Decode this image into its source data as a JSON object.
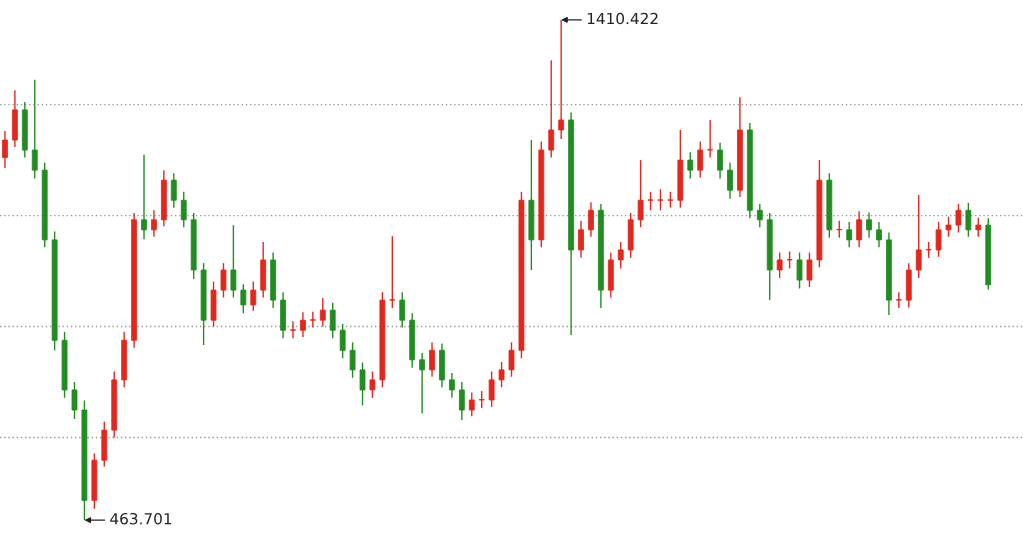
{
  "chart_data": {
    "type": "candlestick",
    "categories": [
      null,
      null,
      null,
      null,
      null,
      null,
      null,
      null,
      null,
      null,
      null,
      null,
      null,
      null,
      null,
      null,
      null,
      null,
      null,
      null,
      null,
      null,
      null,
      null,
      null,
      null,
      null,
      null,
      null,
      null,
      null,
      null,
      null,
      null,
      null,
      null,
      null,
      null,
      null,
      null,
      null,
      null,
      null,
      null,
      null,
      null,
      null,
      null,
      null,
      null,
      null,
      null,
      null,
      null,
      null,
      null,
      null,
      null,
      null,
      null,
      null,
      null,
      null,
      null,
      null,
      null,
      null,
      null,
      null,
      null,
      null,
      null,
      null,
      null,
      null,
      null,
      null,
      null,
      null,
      null,
      null,
      null,
      null,
      null,
      null,
      null,
      null,
      null,
      null,
      null,
      null,
      null,
      null,
      null,
      null,
      null,
      null,
      null,
      null,
      null
    ],
    "ohlc": [
      [
        1150,
        1200,
        1130,
        1183
      ],
      [
        1183,
        1277,
        1170,
        1240
      ],
      [
        1240,
        1255,
        1150,
        1164
      ],
      [
        1164,
        1297,
        1110,
        1126
      ],
      [
        1126,
        1140,
        980,
        994
      ],
      [
        994,
        1010,
        785,
        804
      ],
      [
        804,
        820,
        695,
        710
      ],
      [
        710,
        725,
        655,
        672
      ],
      [
        672,
        690,
        463.701,
        501
      ],
      [
        501,
        590,
        485,
        577
      ],
      [
        577,
        650,
        565,
        634
      ],
      [
        634,
        745,
        620,
        729
      ],
      [
        729,
        820,
        715,
        804
      ],
      [
        804,
        1045,
        790,
        1032
      ],
      [
        1032,
        1155,
        995,
        1013
      ],
      [
        1013,
        1050,
        1000,
        1032
      ],
      [
        1032,
        1126,
        1020,
        1107
      ],
      [
        1107,
        1120,
        1055,
        1069
      ],
      [
        1069,
        1085,
        1018,
        1032
      ],
      [
        1032,
        1045,
        920,
        937
      ],
      [
        937,
        950,
        795,
        842
      ],
      [
        842,
        915,
        830,
        899
      ],
      [
        899,
        950,
        885,
        937
      ],
      [
        937,
        1022,
        885,
        899
      ],
      [
        899,
        910,
        855,
        871
      ],
      [
        871,
        915,
        860,
        899
      ],
      [
        899,
        990,
        885,
        956
      ],
      [
        956,
        970,
        865,
        880
      ],
      [
        880,
        895,
        808,
        823
      ],
      [
        823,
        840,
        808,
        823
      ],
      [
        823,
        857,
        810,
        842
      ],
      [
        842,
        858,
        828,
        842
      ],
      [
        842,
        884,
        830,
        861
      ],
      [
        861,
        875,
        808,
        823
      ],
      [
        823,
        835,
        770,
        785
      ],
      [
        785,
        800,
        733,
        748
      ],
      [
        748,
        762,
        681,
        710
      ],
      [
        710,
        745,
        695,
        729
      ],
      [
        729,
        895,
        715,
        880
      ],
      [
        880,
        1001,
        865,
        880
      ],
      [
        880,
        895,
        828,
        842
      ],
      [
        842,
        855,
        752,
        767
      ],
      [
        767,
        780,
        666,
        748
      ],
      [
        748,
        800,
        735,
        785
      ],
      [
        785,
        798,
        715,
        729
      ],
      [
        729,
        742,
        695,
        710
      ],
      [
        710,
        725,
        653,
        672
      ],
      [
        672,
        705,
        660,
        691
      ],
      [
        691,
        708,
        676,
        691
      ],
      [
        691,
        745,
        678,
        729
      ],
      [
        729,
        763,
        715,
        748
      ],
      [
        748,
        800,
        735,
        785
      ],
      [
        785,
        1085,
        770,
        1069
      ],
      [
        1069,
        1183,
        937,
        994
      ],
      [
        994,
        1180,
        980,
        1164
      ],
      [
        1164,
        1334,
        1150,
        1202
      ],
      [
        1202,
        1410.422,
        1185,
        1221
      ],
      [
        1221,
        1235,
        814,
        975
      ],
      [
        975,
        1030,
        960,
        1013
      ],
      [
        1013,
        1065,
        1000,
        1050
      ],
      [
        1050,
        1062,
        865,
        899
      ],
      [
        899,
        970,
        885,
        956
      ],
      [
        956,
        990,
        940,
        975
      ],
      [
        975,
        1045,
        960,
        1032
      ],
      [
        1032,
        1145,
        1018,
        1069
      ],
      [
        1069,
        1085,
        1050,
        1069
      ],
      [
        1069,
        1090,
        1050,
        1069
      ],
      [
        1069,
        1085,
        1055,
        1069
      ],
      [
        1069,
        1202,
        1055,
        1145
      ],
      [
        1145,
        1160,
        1110,
        1126
      ],
      [
        1126,
        1180,
        1112,
        1164
      ],
      [
        1164,
        1221,
        1150,
        1164
      ],
      [
        1164,
        1178,
        1110,
        1126
      ],
      [
        1126,
        1140,
        1072,
        1088
      ],
      [
        1088,
        1264,
        1075,
        1202
      ],
      [
        1202,
        1215,
        1035,
        1050
      ],
      [
        1050,
        1062,
        1018,
        1032
      ],
      [
        1032,
        1045,
        880,
        937
      ],
      [
        937,
        970,
        922,
        956
      ],
      [
        956,
        972,
        940,
        956
      ],
      [
        956,
        970,
        902,
        918
      ],
      [
        918,
        970,
        905,
        956
      ],
      [
        956,
        1145,
        942,
        1107
      ],
      [
        1107,
        1120,
        998,
        1013
      ],
      [
        1013,
        1030,
        998,
        1013
      ],
      [
        1013,
        1028,
        980,
        994
      ],
      [
        994,
        1048,
        980,
        1032
      ],
      [
        1032,
        1046,
        998,
        1013
      ],
      [
        1013,
        1028,
        980,
        994
      ],
      [
        994,
        1008,
        852,
        880
      ],
      [
        880,
        895,
        865,
        880
      ],
      [
        880,
        950,
        866,
        937
      ],
      [
        937,
        1079,
        922,
        975
      ],
      [
        975,
        990,
        960,
        975
      ],
      [
        975,
        1028,
        962,
        1013
      ],
      [
        1013,
        1038,
        1000,
        1022
      ],
      [
        1022,
        1062,
        1008,
        1050
      ],
      [
        1050,
        1064,
        1000,
        1013
      ],
      [
        1013,
        1036,
        1000,
        1022
      ],
      [
        1022,
        1035,
        900,
        909
      ]
    ],
    "colors": [
      "#e0281e",
      "#e0281e",
      "#228b22",
      "#228b22",
      "#228b22",
      "#228b22",
      "#228b22",
      "#228b22",
      "#228b22",
      "#e0281e",
      "#e0281e",
      "#e0281e",
      "#e0281e",
      "#e0281e",
      "#228b22",
      "#e0281e",
      "#e0281e",
      "#228b22",
      "#228b22",
      "#228b22",
      "#228b22",
      "#e0281e",
      "#e0281e",
      "#228b22",
      "#228b22",
      "#e0281e",
      "#e0281e",
      "#228b22",
      "#228b22",
      "#e0281e",
      "#e0281e",
      "#e0281e",
      "#e0281e",
      "#228b22",
      "#228b22",
      "#228b22",
      "#228b22",
      "#e0281e",
      "#e0281e",
      "#e0281e",
      "#228b22",
      "#228b22",
      "#228b22",
      "#e0281e",
      "#228b22",
      "#228b22",
      "#228b22",
      "#e0281e",
      "#e0281e",
      "#e0281e",
      "#e0281e",
      "#e0281e",
      "#e0281e",
      "#228b22",
      "#e0281e",
      "#e0281e",
      "#e0281e",
      "#228b22",
      "#e0281e",
      "#e0281e",
      "#228b22",
      "#e0281e",
      "#e0281e",
      "#e0281e",
      "#e0281e",
      "#e0281e",
      "#e0281e",
      "#e0281e",
      "#e0281e",
      "#228b22",
      "#e0281e",
      "#e0281e",
      "#228b22",
      "#228b22",
      "#e0281e",
      "#228b22",
      "#228b22",
      "#228b22",
      "#e0281e",
      "#e0281e",
      "#228b22",
      "#e0281e",
      "#e0281e",
      "#228b22",
      "#e0281e",
      "#228b22",
      "#e0281e",
      "#228b22",
      "#228b22",
      "#228b22",
      "#e0281e",
      "#e0281e",
      "#e0281e",
      "#e0281e",
      "#e0281e",
      "#e0281e",
      "#e0281e",
      "#228b22",
      "#e0281e",
      "#228b22"
    ],
    "ylim": [
      426,
      1448
    ],
    "yticks": [
      {
        "value": 1250,
        "label": null
      },
      {
        "value": 1040,
        "label": null
      },
      {
        "value": 830,
        "label": null
      },
      {
        "value": 620,
        "label": null
      }
    ],
    "grid": "y",
    "annotations": [
      "1410.422",
      "463.701"
    ]
  }
}
